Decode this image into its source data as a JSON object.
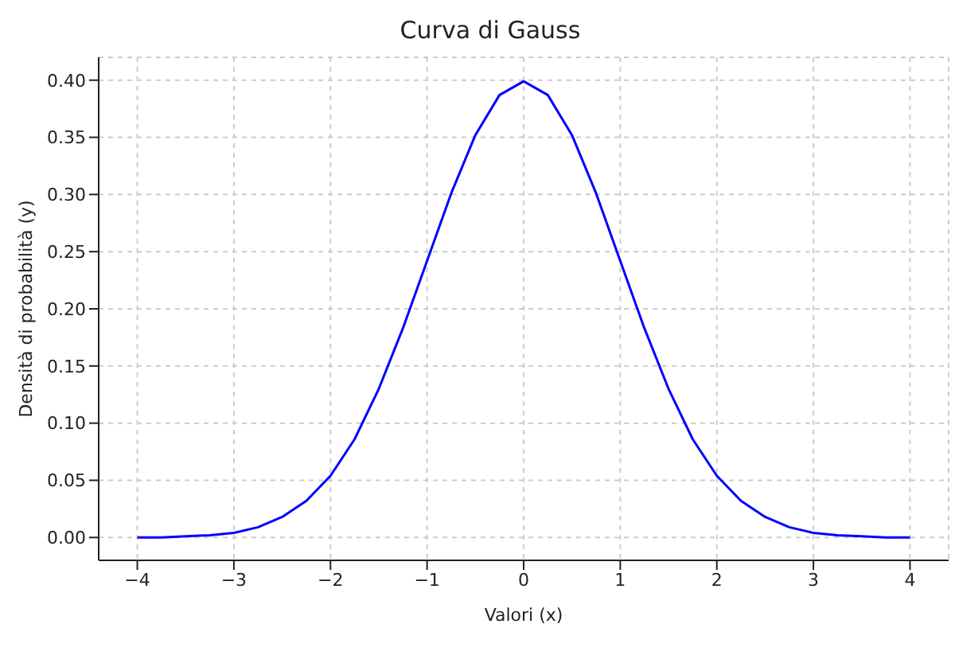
{
  "chart_data": {
    "type": "line",
    "title": "Curva di Gauss",
    "xlabel": "Valori (x)",
    "ylabel": "Densità di probabilità (y)",
    "x": [
      -4,
      -3.75,
      -3.5,
      -3.25,
      -3,
      -2.75,
      -2.5,
      -2.25,
      -2,
      -1.75,
      -1.5,
      -1.25,
      -1,
      -0.75,
      -0.5,
      -0.25,
      0,
      0.25,
      0.5,
      0.75,
      1,
      1.25,
      1.5,
      1.75,
      2,
      2.25,
      2.5,
      2.75,
      3,
      3.25,
      3.5,
      3.75,
      4
    ],
    "series": [
      {
        "color": "#0000ff",
        "values": [
          0.0,
          0.0,
          0.001,
          0.002,
          0.004,
          0.009,
          0.018,
          0.032,
          0.054,
          0.086,
          0.13,
          0.183,
          0.242,
          0.301,
          0.352,
          0.387,
          0.399,
          0.387,
          0.352,
          0.301,
          0.242,
          0.183,
          0.13,
          0.086,
          0.054,
          0.032,
          0.018,
          0.009,
          0.004,
          0.002,
          0.001,
          0.0,
          0.0
        ]
      }
    ],
    "xlim": [
      -4.4,
      4.4
    ],
    "xticks": [
      {
        "value": -4,
        "label": "−4"
      },
      {
        "value": -3,
        "label": "−3"
      },
      {
        "value": -2,
        "label": "−2"
      },
      {
        "value": -1,
        "label": "−1"
      },
      0,
      1,
      2,
      3,
      4
    ],
    "ylim": [
      -0.02,
      0.42
    ],
    "yticks": [
      {
        "value": 0,
        "label": "0.00"
      },
      {
        "value": 0.05,
        "label": "0.05"
      },
      {
        "value": 0.1,
        "label": "0.10"
      },
      {
        "value": 0.15,
        "label": "0.15"
      },
      {
        "value": 0.2,
        "label": "0.20"
      },
      {
        "value": 0.25,
        "label": "0.25"
      },
      {
        "value": 0.3,
        "label": "0.30"
      },
      {
        "value": 0.35,
        "label": "0.35"
      },
      {
        "value": 0.4,
        "label": "0.40"
      }
    ],
    "grid": true,
    "legend": false,
    "marker": "none",
    "line_style": "solid"
  }
}
